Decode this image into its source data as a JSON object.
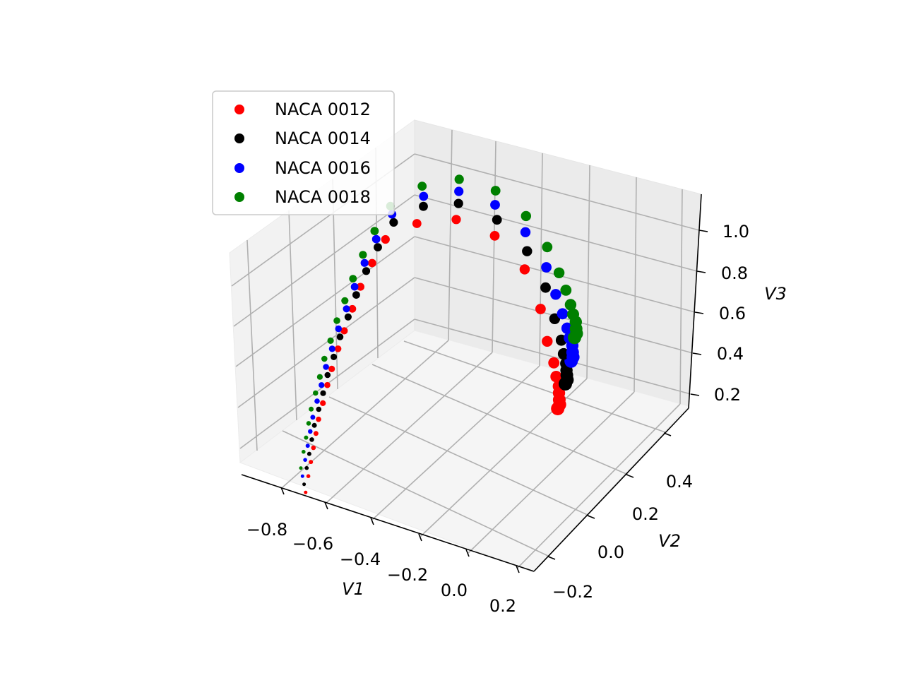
{
  "chart_data": {
    "type": "scatter3d",
    "title": "",
    "xlabel": "V1",
    "ylabel": "V2",
    "zlabel": "V3",
    "x_ticks": [
      "−0.8",
      "−0.6",
      "−0.4",
      "−0.2",
      "0.0",
      "0.2"
    ],
    "y_ticks": [
      "−0.2",
      "0.0",
      "0.2",
      "0.4"
    ],
    "z_ticks": [
      "0.2",
      "0.4",
      "0.6",
      "0.8",
      "1.0"
    ],
    "xlim": [
      -0.9,
      0.25
    ],
    "ylim": [
      -0.3,
      0.55
    ],
    "zlim": [
      0.1,
      1.12
    ],
    "legend_position": "top-left",
    "grid": true,
    "series": [
      {
        "name": "NACA 0012",
        "color": "#ff0000",
        "points": [
          [
            -0.71,
            -0.16,
            0.14
          ],
          [
            -0.71,
            -0.15,
            0.21
          ],
          [
            -0.71,
            -0.14,
            0.27
          ],
          [
            -0.71,
            -0.13,
            0.33
          ],
          [
            -0.71,
            -0.12,
            0.39
          ],
          [
            -0.71,
            -0.11,
            0.45
          ],
          [
            -0.71,
            -0.09,
            0.51
          ],
          [
            -0.71,
            -0.07,
            0.58
          ],
          [
            -0.71,
            -0.05,
            0.64
          ],
          [
            -0.71,
            -0.02,
            0.71
          ],
          [
            -0.71,
            0.01,
            0.77
          ],
          [
            -0.71,
            0.05,
            0.84
          ],
          [
            -0.71,
            0.09,
            0.91
          ],
          [
            -0.71,
            0.15,
            0.97
          ],
          [
            -0.71,
            0.22,
            1.02
          ],
          [
            -0.64,
            0.3,
            1.05
          ],
          [
            -0.52,
            0.36,
            1.06
          ],
          [
            -0.37,
            0.38,
            1.02
          ],
          [
            -0.23,
            0.37,
            0.92
          ],
          [
            -0.14,
            0.35,
            0.78
          ],
          [
            -0.09,
            0.33,
            0.66
          ],
          [
            -0.05,
            0.32,
            0.58
          ],
          [
            -0.03,
            0.31,
            0.53
          ],
          [
            -0.01,
            0.3,
            0.5
          ],
          [
            0.0,
            0.29,
            0.48
          ],
          [
            0.01,
            0.28,
            0.46
          ],
          [
            0.02,
            0.27,
            0.45
          ],
          [
            0.02,
            0.26,
            0.44
          ]
        ]
      },
      {
        "name": "NACA 0014",
        "color": "#000000",
        "points": [
          [
            -0.74,
            -0.13,
            0.14
          ],
          [
            -0.74,
            -0.12,
            0.21
          ],
          [
            -0.74,
            -0.11,
            0.27
          ],
          [
            -0.74,
            -0.1,
            0.33
          ],
          [
            -0.74,
            -0.09,
            0.39
          ],
          [
            -0.74,
            -0.07,
            0.45
          ],
          [
            -0.74,
            -0.05,
            0.51
          ],
          [
            -0.74,
            -0.03,
            0.58
          ],
          [
            -0.74,
            0.0,
            0.64
          ],
          [
            -0.74,
            0.03,
            0.71
          ],
          [
            -0.74,
            0.07,
            0.77
          ],
          [
            -0.74,
            0.11,
            0.84
          ],
          [
            -0.74,
            0.16,
            0.91
          ],
          [
            -0.74,
            0.22,
            0.97
          ],
          [
            -0.73,
            0.29,
            1.03
          ],
          [
            -0.66,
            0.36,
            1.07
          ],
          [
            -0.55,
            0.41,
            1.08
          ],
          [
            -0.4,
            0.43,
            1.04
          ],
          [
            -0.26,
            0.42,
            0.95
          ],
          [
            -0.16,
            0.4,
            0.83
          ],
          [
            -0.1,
            0.38,
            0.72
          ],
          [
            -0.06,
            0.37,
            0.64
          ],
          [
            -0.04,
            0.36,
            0.59
          ],
          [
            -0.02,
            0.35,
            0.56
          ],
          [
            -0.01,
            0.34,
            0.54
          ],
          [
            0.0,
            0.33,
            0.53
          ],
          [
            0.01,
            0.32,
            0.52
          ],
          [
            0.01,
            0.31,
            0.51
          ]
        ]
      },
      {
        "name": "NACA 0016",
        "color": "#0000ff",
        "points": [
          [
            -0.77,
            -0.1,
            0.14
          ],
          [
            -0.77,
            -0.09,
            0.21
          ],
          [
            -0.77,
            -0.08,
            0.27
          ],
          [
            -0.77,
            -0.07,
            0.33
          ],
          [
            -0.77,
            -0.06,
            0.39
          ],
          [
            -0.77,
            -0.04,
            0.45
          ],
          [
            -0.77,
            -0.02,
            0.51
          ],
          [
            -0.77,
            0.0,
            0.58
          ],
          [
            -0.77,
            0.03,
            0.64
          ],
          [
            -0.77,
            0.06,
            0.71
          ],
          [
            -0.77,
            0.1,
            0.77
          ],
          [
            -0.77,
            0.14,
            0.84
          ],
          [
            -0.77,
            0.19,
            0.91
          ],
          [
            -0.77,
            0.25,
            0.97
          ],
          [
            -0.76,
            0.32,
            1.03
          ],
          [
            -0.69,
            0.4,
            1.07
          ],
          [
            -0.58,
            0.45,
            1.09
          ],
          [
            -0.44,
            0.47,
            1.06
          ],
          [
            -0.3,
            0.46,
            0.99
          ],
          [
            -0.19,
            0.44,
            0.88
          ],
          [
            -0.13,
            0.42,
            0.79
          ],
          [
            -0.09,
            0.41,
            0.72
          ],
          [
            -0.06,
            0.4,
            0.67
          ],
          [
            -0.04,
            0.39,
            0.64
          ],
          [
            -0.02,
            0.38,
            0.62
          ],
          [
            -0.01,
            0.37,
            0.6
          ],
          [
            0.0,
            0.36,
            0.59
          ],
          [
            0.0,
            0.35,
            0.58
          ]
        ]
      },
      {
        "name": "NACA 0018",
        "color": "#008000",
        "points": [
          [
            -0.8,
            -0.07,
            0.14
          ],
          [
            -0.8,
            -0.06,
            0.21
          ],
          [
            -0.8,
            -0.05,
            0.27
          ],
          [
            -0.8,
            -0.04,
            0.33
          ],
          [
            -0.8,
            -0.03,
            0.39
          ],
          [
            -0.8,
            -0.01,
            0.45
          ],
          [
            -0.8,
            0.01,
            0.51
          ],
          [
            -0.8,
            0.03,
            0.58
          ],
          [
            -0.8,
            0.06,
            0.64
          ],
          [
            -0.8,
            0.09,
            0.71
          ],
          [
            -0.8,
            0.13,
            0.77
          ],
          [
            -0.8,
            0.17,
            0.84
          ],
          [
            -0.8,
            0.22,
            0.91
          ],
          [
            -0.8,
            0.28,
            0.97
          ],
          [
            -0.79,
            0.35,
            1.03
          ],
          [
            -0.72,
            0.43,
            1.08
          ],
          [
            -0.61,
            0.49,
            1.1
          ],
          [
            -0.47,
            0.51,
            1.08
          ],
          [
            -0.33,
            0.5,
            1.02
          ],
          [
            -0.22,
            0.48,
            0.93
          ],
          [
            -0.15,
            0.46,
            0.85
          ],
          [
            -0.11,
            0.45,
            0.79
          ],
          [
            -0.08,
            0.44,
            0.74
          ],
          [
            -0.06,
            0.43,
            0.71
          ],
          [
            -0.04,
            0.42,
            0.69
          ],
          [
            -0.03,
            0.41,
            0.67
          ],
          [
            -0.02,
            0.4,
            0.66
          ],
          [
            -0.02,
            0.39,
            0.65
          ]
        ]
      }
    ]
  }
}
